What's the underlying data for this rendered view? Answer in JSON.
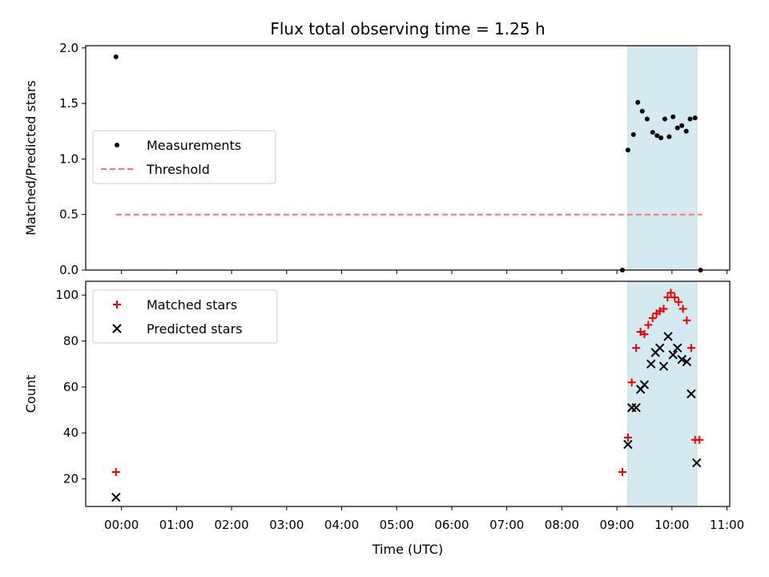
{
  "chart_data": {
    "type": "scatter",
    "title": "Flux total observing time = 1.25 h",
    "xlabel": "Time (UTC)",
    "x_ticks": [
      "00:00",
      "01:00",
      "02:00",
      "03:00",
      "04:00",
      "05:00",
      "06:00",
      "07:00",
      "08:00",
      "09:00",
      "10:00",
      "11:00"
    ],
    "xlim_hours": [
      -0.65,
      11.05
    ],
    "observing_window_hours": [
      9.2,
      10.45
    ],
    "observing_window_color": "#d4eaf0",
    "panels": [
      {
        "ylabel": "Matched/Predicted stars",
        "ylim": [
          0,
          2.02
        ],
        "yticks": [
          0.0,
          0.5,
          1.0,
          1.5,
          2.0
        ],
        "ytick_labels": [
          "0.0",
          "0.5",
          "1.0",
          "1.5",
          "2.0"
        ],
        "legend_position": "center-left",
        "series": [
          {
            "name": "Measurements",
            "kind": "scatter",
            "marker": "dot",
            "color": "#000000",
            "x": [
              -0.1,
              9.1,
              9.2,
              9.3,
              9.38,
              9.46,
              9.55,
              9.65,
              9.73,
              9.8,
              9.87,
              9.95,
              10.02,
              10.1,
              10.18,
              10.26,
              10.33,
              10.42,
              10.52
            ],
            "y": [
              1.92,
              0.0,
              1.08,
              1.22,
              1.51,
              1.43,
              1.36,
              1.24,
              1.21,
              1.19,
              1.36,
              1.2,
              1.38,
              1.28,
              1.3,
              1.25,
              1.36,
              1.37,
              0.0
            ]
          },
          {
            "name": "Threshold",
            "kind": "line",
            "style": "dashed",
            "color": "#ff7070",
            "x": [
              -0.1,
              10.55
            ],
            "y": [
              0.5,
              0.5
            ]
          }
        ]
      },
      {
        "ylabel": "Count",
        "ylim": [
          8,
          106
        ],
        "yticks": [
          20,
          40,
          60,
          80,
          100
        ],
        "ytick_labels": [
          "20",
          "40",
          "60",
          "80",
          "100"
        ],
        "legend_position": "top-left",
        "series": [
          {
            "name": "Matched stars",
            "kind": "scatter",
            "marker": "plus",
            "color": "#ee0000",
            "x": [
              -0.1,
              9.1,
              9.2,
              9.27,
              9.35,
              9.43,
              9.5,
              9.57,
              9.65,
              9.72,
              9.78,
              9.85,
              9.92,
              9.98,
              10.05,
              10.12,
              10.2,
              10.27,
              10.35,
              10.42,
              10.5
            ],
            "y": [
              23,
              23,
              38,
              62,
              77,
              84,
              83,
              87,
              90,
              92,
              93,
              94,
              99,
              101,
              99,
              97,
              94,
              89,
              77,
              37,
              37
            ]
          },
          {
            "name": "Predicted stars",
            "kind": "scatter",
            "marker": "cross",
            "color": "#000000",
            "x": [
              -0.1,
              9.2,
              9.27,
              9.35,
              9.43,
              9.5,
              9.62,
              9.7,
              9.78,
              9.85,
              9.93,
              10.02,
              10.1,
              10.18,
              10.27,
              10.35,
              10.45
            ],
            "y": [
              12,
              35,
              51,
              51,
              59,
              61,
              70,
              75,
              77,
              69,
              82,
              74,
              77,
              72,
              71,
              57,
              27
            ]
          }
        ]
      }
    ]
  }
}
